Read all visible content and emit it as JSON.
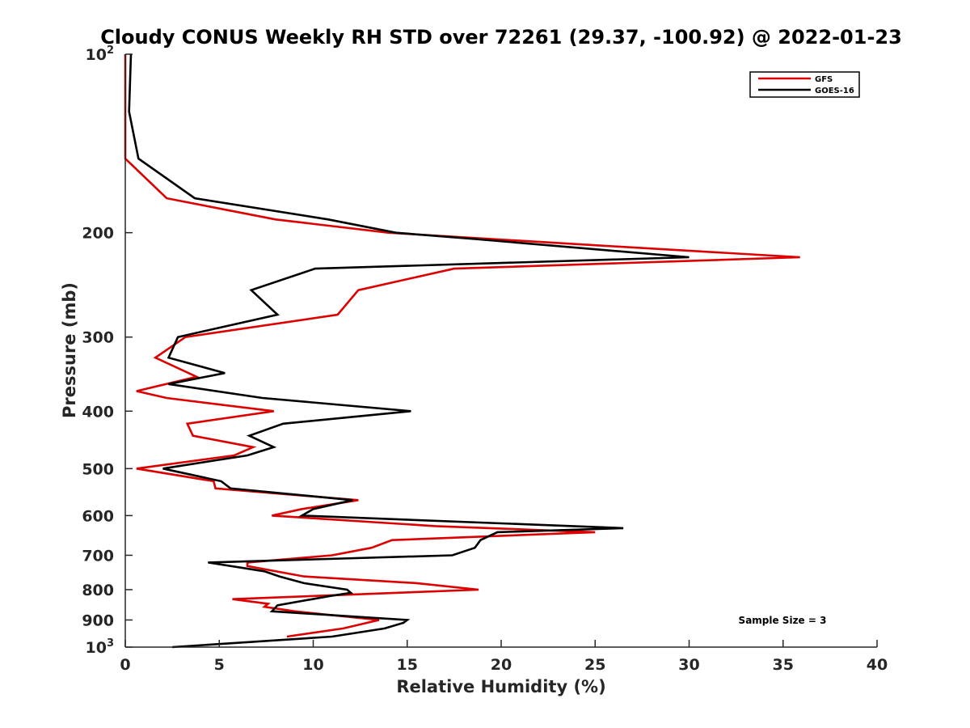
{
  "chart_data": {
    "type": "line",
    "title": "Cloudy CONUS Weekly RH STD over 72261 (29.37, -100.92) @ 2022-01-23",
    "xlabel": "Relative Humidity (%)",
    "ylabel": "Pressure (mb)",
    "xlim": [
      0,
      40
    ],
    "ylim": [
      100,
      1000
    ],
    "y_scale": "log",
    "y_inverted": true,
    "grid": false,
    "legend_position": "top-right",
    "annotation": "Sample Size = 3",
    "x_ticks": [
      0,
      5,
      10,
      15,
      20,
      25,
      30,
      35,
      40
    ],
    "x_tick_labels": [
      "0",
      "5",
      "10",
      "15",
      "20",
      "25",
      "30",
      "35",
      "40"
    ],
    "y_ticks": [
      100,
      200,
      300,
      400,
      500,
      600,
      700,
      800,
      900,
      1000
    ],
    "y_tick_labels": [
      {
        "base": "10",
        "exp": "2"
      },
      {
        "base": "200",
        "exp": ""
      },
      {
        "base": "300",
        "exp": ""
      },
      {
        "base": "400",
        "exp": ""
      },
      {
        "base": "500",
        "exp": ""
      },
      {
        "base": "600",
        "exp": ""
      },
      {
        "base": "700",
        "exp": ""
      },
      {
        "base": "800",
        "exp": ""
      },
      {
        "base": "900",
        "exp": ""
      },
      {
        "base": "10",
        "exp": "3"
      }
    ],
    "series": [
      {
        "name": "GFS",
        "color": "#dd0000",
        "points": [
          [
            0.0,
            100
          ],
          [
            0.0,
            125
          ],
          [
            0.0,
            150
          ],
          [
            2.2,
            175
          ],
          [
            8.0,
            190
          ],
          [
            14.0,
            200
          ],
          [
            25.0,
            210
          ],
          [
            35.9,
            220
          ],
          [
            17.5,
            230
          ],
          [
            12.4,
            250
          ],
          [
            11.3,
            275
          ],
          [
            3.2,
            300
          ],
          [
            1.6,
            325
          ],
          [
            3.8,
            350
          ],
          [
            0.6,
            370
          ],
          [
            2.2,
            380
          ],
          [
            7.9,
            400
          ],
          [
            3.3,
            420
          ],
          [
            3.6,
            440
          ],
          [
            6.8,
            460
          ],
          [
            5.8,
            475
          ],
          [
            0.6,
            500
          ],
          [
            4.7,
            525
          ],
          [
            4.8,
            540
          ],
          [
            12.4,
            565
          ],
          [
            9.4,
            585
          ],
          [
            7.8,
            600
          ],
          [
            16.5,
            625
          ],
          [
            25.0,
            640
          ],
          [
            14.2,
            660
          ],
          [
            13.1,
            680
          ],
          [
            11.0,
            700
          ],
          [
            6.5,
            720
          ],
          [
            6.5,
            730
          ],
          [
            9.5,
            760
          ],
          [
            15.5,
            780
          ],
          [
            18.8,
            800
          ],
          [
            5.7,
            830
          ],
          [
            7.6,
            845
          ],
          [
            7.4,
            855
          ],
          [
            9.0,
            870
          ],
          [
            13.5,
            900
          ],
          [
            11.6,
            930
          ],
          [
            8.6,
            960
          ]
        ]
      },
      {
        "name": "GOES-16",
        "color": "#000000",
        "points": [
          [
            0.3,
            100
          ],
          [
            0.2,
            125
          ],
          [
            0.7,
            150
          ],
          [
            3.7,
            175
          ],
          [
            10.8,
            190
          ],
          [
            14.4,
            200
          ],
          [
            18.6,
            205
          ],
          [
            30.0,
            220
          ],
          [
            10.1,
            230
          ],
          [
            6.7,
            250
          ],
          [
            8.1,
            275
          ],
          [
            2.8,
            300
          ],
          [
            2.3,
            325
          ],
          [
            5.3,
            345
          ],
          [
            2.3,
            360
          ],
          [
            7.3,
            380
          ],
          [
            15.2,
            400
          ],
          [
            8.4,
            420
          ],
          [
            6.6,
            440
          ],
          [
            7.9,
            460
          ],
          [
            6.5,
            475
          ],
          [
            2.0,
            500
          ],
          [
            5.1,
            525
          ],
          [
            5.6,
            540
          ],
          [
            12.1,
            565
          ],
          [
            10.0,
            585
          ],
          [
            9.4,
            600
          ],
          [
            26.5,
            630
          ],
          [
            19.8,
            640
          ],
          [
            18.9,
            660
          ],
          [
            18.6,
            680
          ],
          [
            17.4,
            700
          ],
          [
            4.4,
            720
          ],
          [
            7.4,
            745
          ],
          [
            8.2,
            760
          ],
          [
            9.5,
            780
          ],
          [
            11.8,
            800
          ],
          [
            12.0,
            810
          ],
          [
            10.9,
            820
          ],
          [
            8.1,
            850
          ],
          [
            7.8,
            870
          ],
          [
            15.0,
            900
          ],
          [
            14.8,
            910
          ],
          [
            13.8,
            930
          ],
          [
            11.0,
            960
          ],
          [
            2.5,
            1000
          ]
        ]
      }
    ]
  }
}
